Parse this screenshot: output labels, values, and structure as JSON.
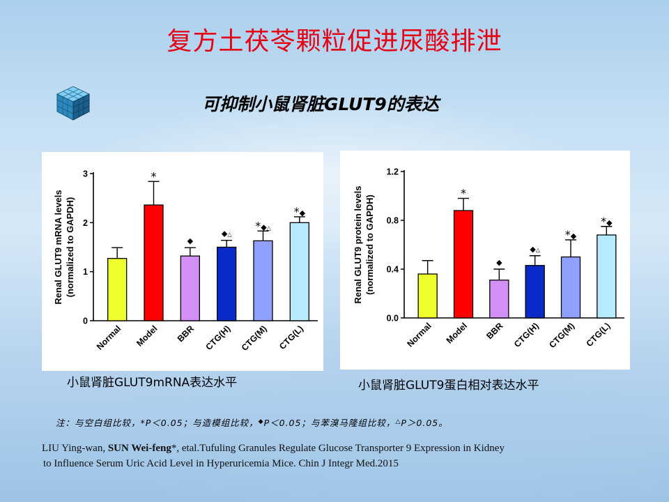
{
  "slide": {
    "title": "复方土茯苓颗粒促进尿酸排泄",
    "subtitle": "可抑制小鼠肾脏GLUT9的表达",
    "colors": {
      "title": "#e60012"
    }
  },
  "captions": {
    "mrna": "小鼠肾脏GLUT9mRNA表达水平",
    "protein": "小鼠肾脏GLUT9蛋白相对表达水平"
  },
  "footnote": {
    "prefix": "注：与空白组比较，",
    "p1": "*P＜0.05；与造模组比较，",
    "diamond": "◆",
    "p2": "P＜0.05；与苯溴马隆组比较，",
    "triangle": "△",
    "p3": "P＞0.05。"
  },
  "reference": {
    "authors_a": "LIU Ying-wan, ",
    "authors_b": "SUN Wei-feng",
    "authors_c": "*, etal.Tufuling Granules Regulate Glucose Transporter 9 Expression in Kidney",
    "line2": "to Influence Serum Uric Acid Level in Hyperuricemia Mice. Chin J Integr Med.2015"
  },
  "chart_data": [
    {
      "type": "bar",
      "ylabel": "Renal GLUT9 mRNA levels\n(normalized to GAPDH)",
      "categories": [
        "Normal",
        "Model",
        "BBR",
        "CTG(H)",
        "CTG(M)",
        "CTG(L)"
      ],
      "values": [
        1.27,
        2.36,
        1.32,
        1.5,
        1.63,
        2.0
      ],
      "errors": [
        0.22,
        0.48,
        0.17,
        0.14,
        0.2,
        0.12
      ],
      "annotations": [
        "",
        "*",
        "◆",
        "◆△",
        "*◆△",
        "*◆"
      ],
      "colors": [
        "#eeff2e",
        "#ff0000",
        "#d28ff5",
        "#0a2ac8",
        "#8fa0ff",
        "#b5eaff"
      ],
      "ylim": [
        0,
        3
      ],
      "yticks": [
        0,
        1,
        2,
        3
      ],
      "yticklabels": [
        "0",
        "1",
        "2",
        "3"
      ]
    },
    {
      "type": "bar",
      "ylabel": "Renal GLUT9 protein levels\n(normalized to GAPDH)",
      "categories": [
        "Normal",
        "Model",
        "BBR",
        "CTG(H)",
        "CTG(M)",
        "CTG(L)"
      ],
      "values": [
        0.36,
        0.88,
        0.31,
        0.43,
        0.5,
        0.68
      ],
      "errors": [
        0.11,
        0.1,
        0.09,
        0.08,
        0.14,
        0.07
      ],
      "annotations": [
        "",
        "*",
        "◆",
        "◆△",
        "*◆",
        "*◆"
      ],
      "colors": [
        "#eeff2e",
        "#ff0000",
        "#d28ff5",
        "#0a2ac8",
        "#8fa0ff",
        "#b5eaff"
      ],
      "ylim": [
        0,
        1.2
      ],
      "yticks": [
        0,
        0.4,
        0.8,
        1.2
      ],
      "yticklabels": [
        "0.0",
        "0.4",
        "0.8",
        "1.2"
      ]
    }
  ]
}
